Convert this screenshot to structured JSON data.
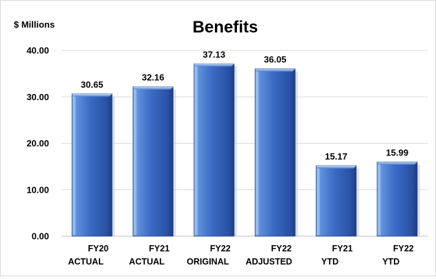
{
  "chart_data": {
    "type": "bar",
    "title": "Benefits",
    "ylabel": "$ Millions",
    "xlabel": "",
    "ylim": [
      0,
      40
    ],
    "yticks": [
      "0.00",
      "10.00",
      "20.00",
      "30.00",
      "40.00"
    ],
    "categories": [
      "FY20 ACTUAL",
      "FY21 ACTUAL",
      "FY22 ORIGINAL",
      "FY22 ADJUSTED",
      "FY21 YTD",
      "FY22 YTD"
    ],
    "category_lines": [
      [
        "FY20",
        "ACTUAL"
      ],
      [
        "FY21",
        "ACTUAL"
      ],
      [
        "FY22",
        "ORIGINAL"
      ],
      [
        "FY22",
        "ADJUSTED"
      ],
      [
        "FY21",
        "YTD"
      ],
      [
        "FY22",
        "YTD"
      ]
    ],
    "values": [
      30.65,
      32.16,
      37.13,
      36.05,
      15.17,
      15.99
    ],
    "value_labels": [
      "30.65",
      "32.16",
      "37.13",
      "36.05",
      "15.17",
      "15.99"
    ],
    "grid": true,
    "legend": "none",
    "colors": {
      "bar": "#3b6bc4",
      "bar_light": "#a8c8f0",
      "bar_dark": "#1d3f86",
      "grid": "#d9d9d9",
      "axis": "#bfbfbf"
    }
  }
}
